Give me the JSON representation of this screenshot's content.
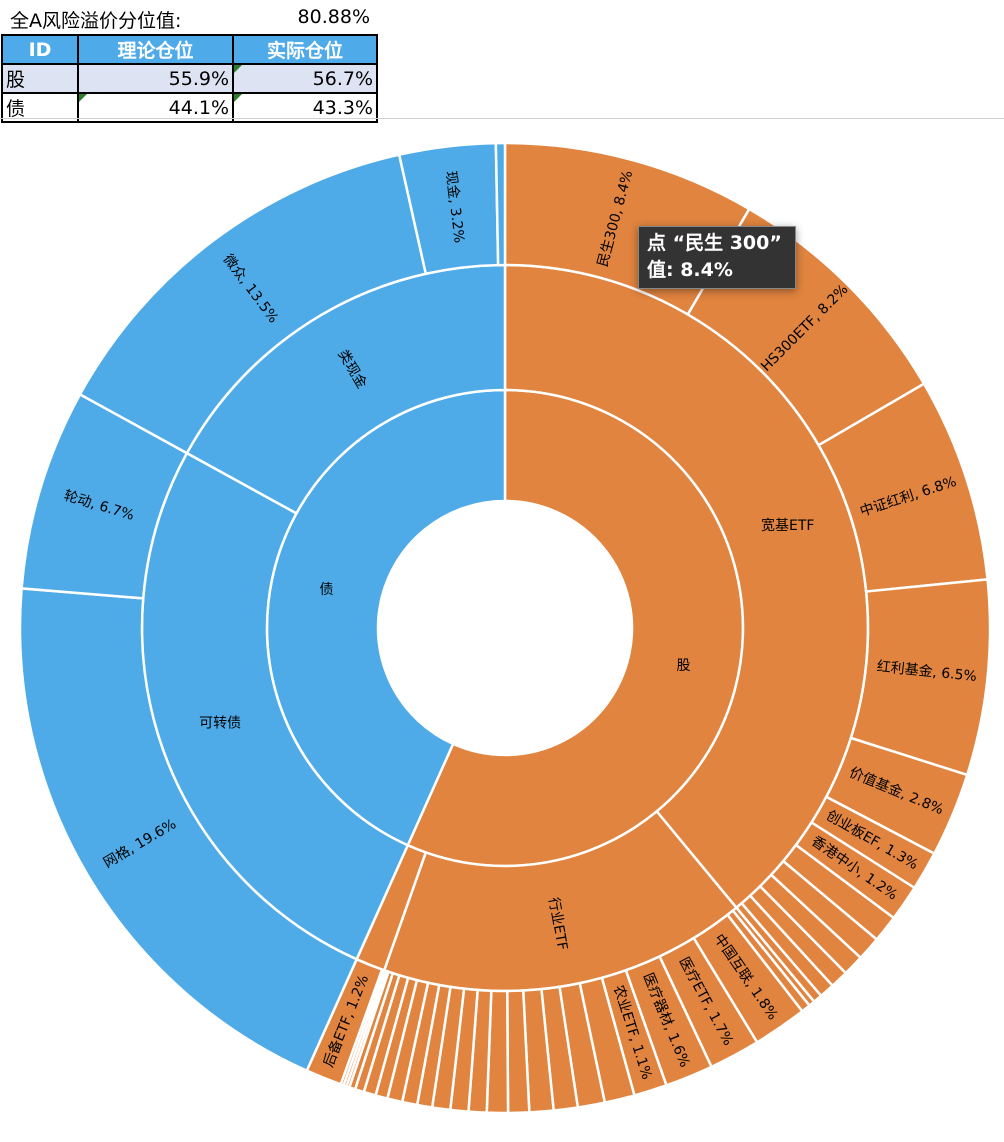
{
  "header": {
    "label": "全A风险溢价分位值:",
    "value": "80.88%"
  },
  "table": {
    "columns": [
      "ID",
      "理论仓位",
      "实际仓位"
    ],
    "rows": [
      [
        "股",
        "55.9%",
        "56.7%"
      ],
      [
        "债",
        "44.1%",
        "43.3%"
      ]
    ]
  },
  "tooltip": {
    "line1": "点 “民生 300”",
    "line2": "值: 8.4%"
  },
  "chart_data": {
    "type": "sunburst",
    "colors": {
      "股": "#e0843f",
      "债": "#4eabe8",
      "border": "#ffffff",
      "text": "#000000"
    },
    "tree": [
      {
        "name": "股",
        "value": 56.7,
        "children": [
          {
            "name": "宽基ETF",
            "children": [
              {
                "name": "民生300",
                "value": 8.4
              },
              {
                "name": "HS300ETF",
                "value": 8.2
              },
              {
                "name": "中证红利",
                "value": 6.8
              },
              {
                "name": "红利基金",
                "value": 6.5
              },
              {
                "name": "价值基金",
                "value": 2.8
              },
              {
                "name": "创业板EF",
                "value": 1.3
              },
              {
                "name": "香港中小",
                "value": 1.2
              },
              {
                "name": "",
                "value": 0.9
              },
              {
                "name": "",
                "value": 0.8
              },
              {
                "name": "",
                "value": 0.7
              },
              {
                "name": "",
                "value": 0.6
              },
              {
                "name": "",
                "value": 0.5
              },
              {
                "name": "",
                "value": 0.3
              }
            ]
          },
          {
            "name": "行业ETF",
            "children": [
              {
                "name": "",
                "value": 0.2
              },
              {
                "name": "",
                "value": 0.3
              },
              {
                "name": "中国互联",
                "value": 1.8
              },
              {
                "name": "医疗ETF",
                "value": 1.7
              },
              {
                "name": "医疗器材",
                "value": 1.6
              },
              {
                "name": "农业ETF",
                "value": 1.1
              },
              {
                "name": "",
                "value": 1.0
              },
              {
                "name": "",
                "value": 0.9
              },
              {
                "name": "",
                "value": 0.8
              },
              {
                "name": "",
                "value": 0.8
              },
              {
                "name": "",
                "value": 0.7
              },
              {
                "name": "",
                "value": 0.7
              },
              {
                "name": "",
                "value": 0.6
              },
              {
                "name": "",
                "value": 0.6
              },
              {
                "name": "",
                "value": 0.6
              },
              {
                "name": "",
                "value": 0.5
              },
              {
                "name": "",
                "value": 0.5
              },
              {
                "name": "",
                "value": 0.5
              },
              {
                "name": "",
                "value": 0.4
              },
              {
                "name": "",
                "value": 0.4
              },
              {
                "name": "",
                "value": 0.3
              },
              {
                "name": "",
                "value": 0.2
              },
              {
                "name": "",
                "value": 0.1
              },
              {
                "name": "",
                "value": 0.1
              }
            ]
          },
          {
            "name": "",
            "children": [
              {
                "name": "",
                "value": 0.1
              },
              {
                "name": "后备ETF",
                "value": 1.2
              }
            ]
          }
        ]
      },
      {
        "name": "债",
        "value": 43.3,
        "children": [
          {
            "name": "可转债",
            "children": [
              {
                "name": "网格",
                "value": 19.6
              },
              {
                "name": "轮动",
                "value": 6.7
              }
            ]
          },
          {
            "name": "类现金",
            "children": [
              {
                "name": "微众",
                "value": 13.5
              },
              {
                "name": "现金",
                "value": 3.2
              },
              {
                "name": "",
                "value": 0.3
              }
            ]
          }
        ]
      }
    ]
  }
}
